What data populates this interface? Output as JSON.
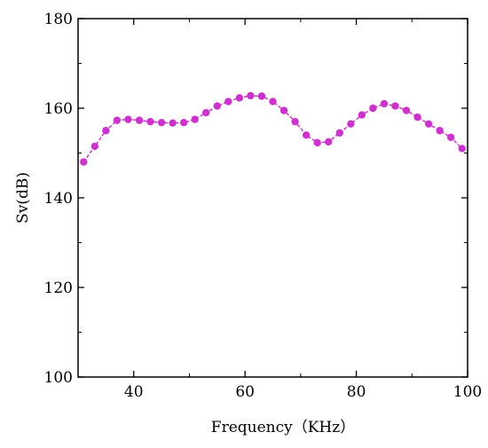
{
  "chart_data": {
    "type": "line",
    "xlabel": "Frequency（KHz）",
    "ylabel": "Sv(dB)",
    "xlim": [
      30,
      100
    ],
    "ylim": [
      100,
      180
    ],
    "xticks": [
      40,
      60,
      80,
      100
    ],
    "yticks": [
      100,
      120,
      140,
      160,
      180
    ],
    "grid": false,
    "series": [
      {
        "color": "#cc33cc",
        "x": [
          31,
          33,
          35,
          37,
          39,
          41,
          43,
          45,
          47,
          49,
          51,
          53,
          55,
          57,
          59,
          61,
          63,
          65,
          67,
          69,
          71,
          73,
          75,
          77,
          79,
          81,
          83,
          85,
          87,
          89,
          91,
          93,
          95,
          97,
          99
        ],
        "y": [
          148,
          151.5,
          155,
          157.3,
          157.5,
          157.3,
          157,
          156.8,
          156.7,
          156.8,
          157.5,
          159,
          160.5,
          161.5,
          162.3,
          162.8,
          162.7,
          161.5,
          159.5,
          157,
          154,
          152.3,
          152.5,
          154.5,
          156.5,
          158.5,
          160,
          161,
          160.5,
          159.5,
          158,
          156.5,
          155,
          153.5,
          151
        ]
      }
    ]
  }
}
